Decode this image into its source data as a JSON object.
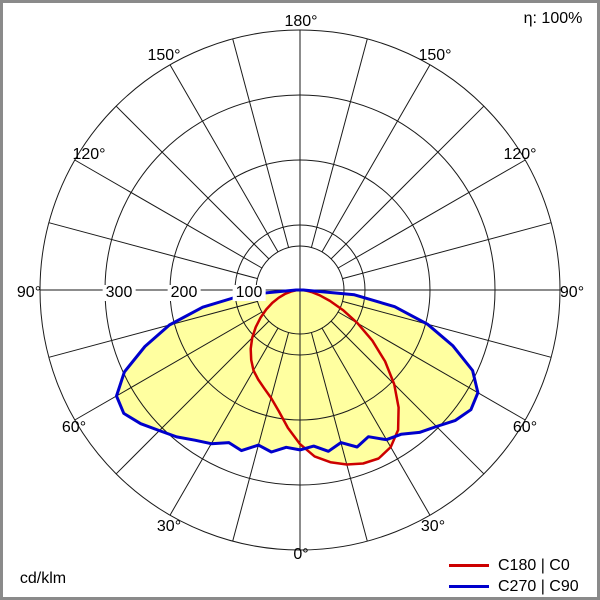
{
  "header": {
    "efficiency": "η: 100%"
  },
  "footer": {
    "unit": "cd/klm"
  },
  "angle_labels": {
    "a0": "0°",
    "a30": "30°",
    "a60": "60°",
    "a90": "90°",
    "a120": "120°",
    "a150": "150°",
    "a180": "180°"
  },
  "radial_labels": {
    "r100": "100",
    "r200": "200",
    "r300": "300"
  },
  "chart_data": {
    "type": "line",
    "variant": "polar-photometric-distribution",
    "units": "cd/klm",
    "efficiency_label": "η: 100%",
    "angle_tick_labels_deg": [
      0,
      30,
      60,
      90,
      120,
      150,
      180
    ],
    "radial_tick_values": [
      100,
      200,
      300
    ],
    "radial_axis_max": 400,
    "grid": true,
    "legend_position": "bottom-right",
    "fill_color": "#ffffa0",
    "series": [
      {
        "name": "C180 | C0",
        "color": "#cc0000",
        "stroke_width": 2.5,
        "points": [
          [
            -90,
            3
          ],
          [
            -85,
            6
          ],
          [
            -80,
            14
          ],
          [
            -75,
            24
          ],
          [
            -70,
            35
          ],
          [
            -65,
            47
          ],
          [
            -60,
            60
          ],
          [
            -55,
            74
          ],
          [
            -50,
            89
          ],
          [
            -45,
            104
          ],
          [
            -40,
            118
          ],
          [
            -35,
            131
          ],
          [
            -30,
            143
          ],
          [
            -25,
            152
          ],
          [
            -20,
            161
          ],
          [
            -15,
            172
          ],
          [
            -10,
            189
          ],
          [
            -5,
            213
          ],
          [
            0,
            237
          ],
          [
            5,
            257
          ],
          [
            10,
            269
          ],
          [
            15,
            278
          ],
          [
            20,
            284
          ],
          [
            25,
            286
          ],
          [
            30,
            279
          ],
          [
            35,
            263
          ],
          [
            40,
            236
          ],
          [
            45,
            205
          ],
          [
            50,
            171
          ],
          [
            55,
            136
          ],
          [
            60,
            102
          ],
          [
            65,
            73
          ],
          [
            70,
            49
          ],
          [
            75,
            31
          ],
          [
            80,
            18
          ],
          [
            85,
            9
          ],
          [
            90,
            3
          ]
        ]
      },
      {
        "name": "C270 | C90",
        "color": "#0000cc",
        "stroke_width": 3,
        "points": [
          [
            -90,
            6
          ],
          [
            -85,
            88
          ],
          [
            -80,
            152
          ],
          [
            -75,
            208
          ],
          [
            -70,
            254
          ],
          [
            -65,
            298
          ],
          [
            -60,
            326
          ],
          [
            -55,
            331
          ],
          [
            -50,
            320
          ],
          [
            -45,
            306
          ],
          [
            -40,
            295
          ],
          [
            -35,
            282
          ],
          [
            -30,
            273
          ],
          [
            -25,
            259
          ],
          [
            -20,
            263
          ],
          [
            -15,
            247
          ],
          [
            -10,
            253
          ],
          [
            -5,
            243
          ],
          [
            0,
            246
          ],
          [
            5,
            241
          ],
          [
            10,
            252
          ],
          [
            15,
            243
          ],
          [
            20,
            257
          ],
          [
            25,
            249
          ],
          [
            30,
            266
          ],
          [
            35,
            271
          ],
          [
            40,
            286
          ],
          [
            45,
            297
          ],
          [
            50,
            312
          ],
          [
            55,
            321
          ],
          [
            60,
            316
          ],
          [
            65,
            293
          ],
          [
            70,
            250
          ],
          [
            75,
            203
          ],
          [
            80,
            148
          ],
          [
            85,
            84
          ],
          [
            90,
            5
          ]
        ]
      }
    ]
  }
}
